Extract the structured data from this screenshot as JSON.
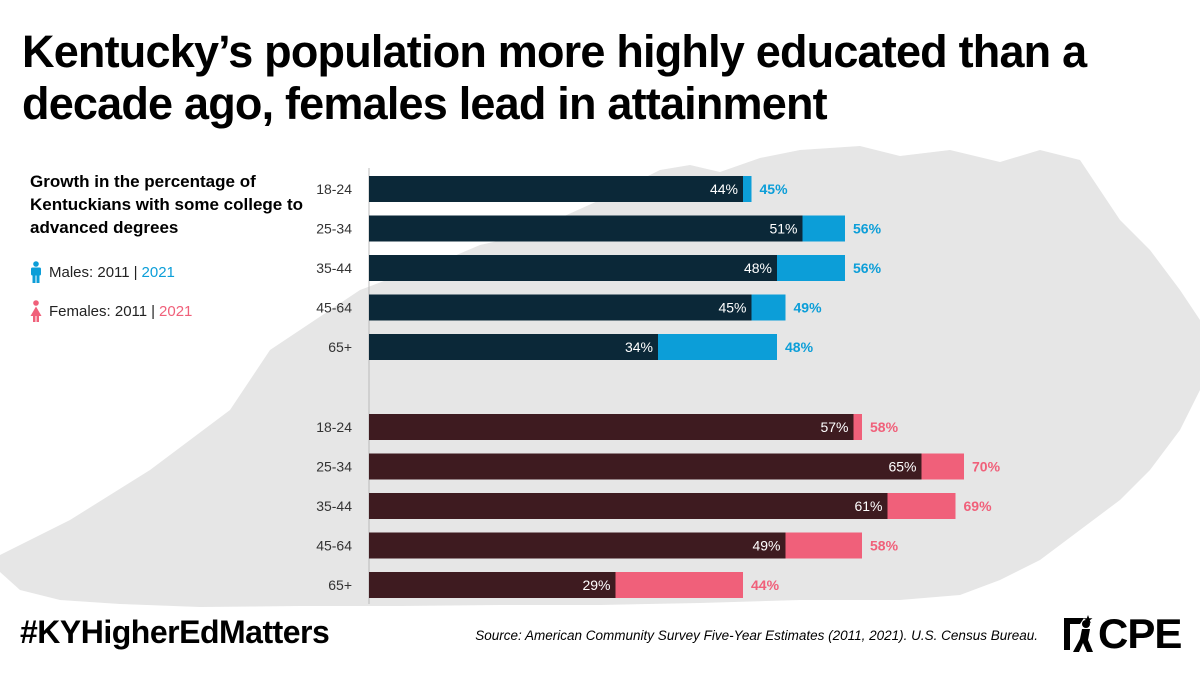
{
  "title": "Kentucky’s population more highly educated than a decade ago, females lead in attainment",
  "subtitle": "Growth in the percentage of Kentuckians with some college to advanced degrees",
  "legend": {
    "male_label": "Males: 2011",
    "female_label": "Females: 2011",
    "separator": "|",
    "year_2021": "2021"
  },
  "colors": {
    "male_2011": "#0b2838",
    "male_2021": "#0c9ed8",
    "female_2011": "#3e1b20",
    "female_2021": "#f0607a",
    "map": "#e6e6e6"
  },
  "chart_data": {
    "type": "bar",
    "orientation": "horizontal",
    "categories": [
      "18-24",
      "25-34",
      "35-44",
      "45-64",
      "65+"
    ],
    "xlim": [
      0,
      100
    ],
    "groups": [
      {
        "group": "Males",
        "series": [
          {
            "name": "2011",
            "values": [
              44,
              51,
              48,
              45,
              34
            ],
            "labels": [
              "44%",
              "51%",
              "48%",
              "45%",
              "34%"
            ]
          },
          {
            "name": "2021",
            "values": [
              45,
              56,
              56,
              49,
              48
            ],
            "labels": [
              "45%",
              "56%",
              "56%",
              "49%",
              "48%"
            ]
          }
        ]
      },
      {
        "group": "Females",
        "series": [
          {
            "name": "2011",
            "values": [
              57,
              65,
              61,
              49,
              29
            ],
            "labels": [
              "57%",
              "65%",
              "61%",
              "49%",
              "29%"
            ]
          },
          {
            "name": "2021",
            "values": [
              58,
              70,
              69,
              58,
              44
            ],
            "labels": [
              "58%",
              "70%",
              "69%",
              "58%",
              "44%"
            ]
          }
        ]
      }
    ]
  },
  "footer": {
    "hashtag": "#KYHigherEdMatters",
    "source": "Source: American Community Survey Five-Year Estimates (2011, 2021). U.S. Census Bureau.",
    "logo_text": "CPE"
  }
}
